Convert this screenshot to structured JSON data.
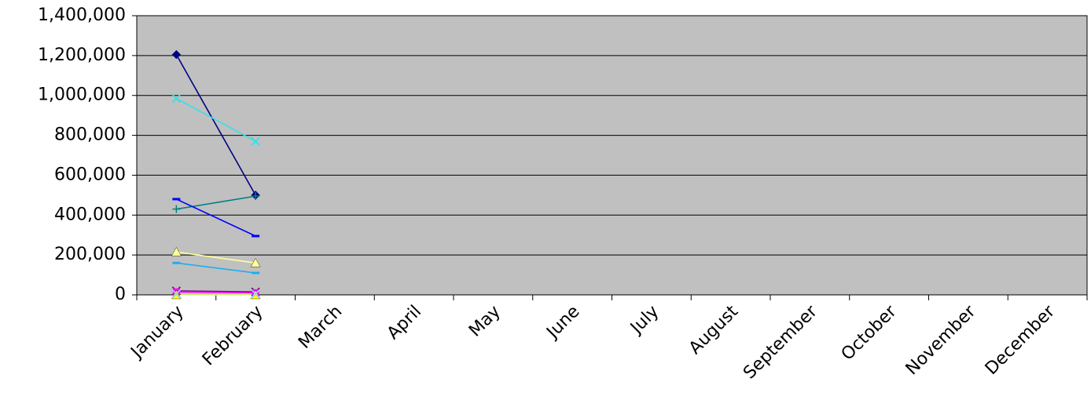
{
  "chart_data": {
    "type": "line",
    "categories": [
      "January",
      "February",
      "March",
      "April",
      "May",
      "June",
      "July",
      "August",
      "September",
      "October",
      "November",
      "December"
    ],
    "series": [
      {
        "color": "#000080",
        "marker": "diamond",
        "values": [
          1205000,
          500000,
          null,
          null,
          null,
          null,
          null,
          null,
          null,
          null,
          null,
          null
        ]
      },
      {
        "color": "#33e0e8",
        "marker": "x",
        "values": [
          985000,
          770000,
          null,
          null,
          null,
          null,
          null,
          null,
          null,
          null,
          null,
          null
        ]
      },
      {
        "color": "#008080",
        "marker": "plus",
        "values": [
          430000,
          495000,
          null,
          null,
          null,
          null,
          null,
          null,
          null,
          null,
          null,
          null
        ]
      },
      {
        "color": "#0000ff",
        "marker": "dash",
        "values": [
          480000,
          295000,
          null,
          null,
          null,
          null,
          null,
          null,
          null,
          null,
          null,
          null
        ]
      },
      {
        "color": "#ffff99",
        "marker": "triangle",
        "values": [
          215000,
          160000,
          null,
          null,
          null,
          null,
          null,
          null,
          null,
          null,
          null,
          null
        ]
      },
      {
        "color": "#1ab0f0",
        "marker": "dash",
        "values": [
          160000,
          110000,
          null,
          null,
          null,
          null,
          null,
          null,
          null,
          null,
          null,
          null
        ]
      },
      {
        "color": "#800080",
        "marker": "x",
        "values": [
          20000,
          15000,
          null,
          null,
          null,
          null,
          null,
          null,
          null,
          null,
          null,
          null
        ]
      },
      {
        "color": "#ff00ff",
        "marker": "square",
        "values": [
          15000,
          10000,
          null,
          null,
          null,
          null,
          null,
          null,
          null,
          null,
          null,
          null
        ]
      },
      {
        "color": "#ffff00",
        "marker": "triangle",
        "values": [
          0,
          0,
          null,
          null,
          null,
          null,
          null,
          null,
          null,
          null,
          null,
          null
        ]
      },
      {
        "color": "#99ccff",
        "marker": "x",
        "values": [
          5000,
          5000,
          null,
          null,
          null,
          null,
          null,
          null,
          null,
          null,
          null,
          null
        ]
      }
    ],
    "ylim": [
      0,
      1400000
    ],
    "yticks": [
      0,
      {
        "value": 200000,
        "label": "200,000"
      },
      {
        "value": 400000,
        "label": "400,000"
      },
      {
        "value": 600000,
        "label": "600,000"
      },
      {
        "value": 800000,
        "label": "800,000"
      },
      {
        "value": 1000000,
        "label": "1,000,000"
      },
      {
        "value": 1200000,
        "label": "1,200,000"
      },
      {
        "value": 1400000,
        "label": "1,400,000"
      }
    ],
    "grid": true,
    "plot_background": "#c0c0c0"
  }
}
